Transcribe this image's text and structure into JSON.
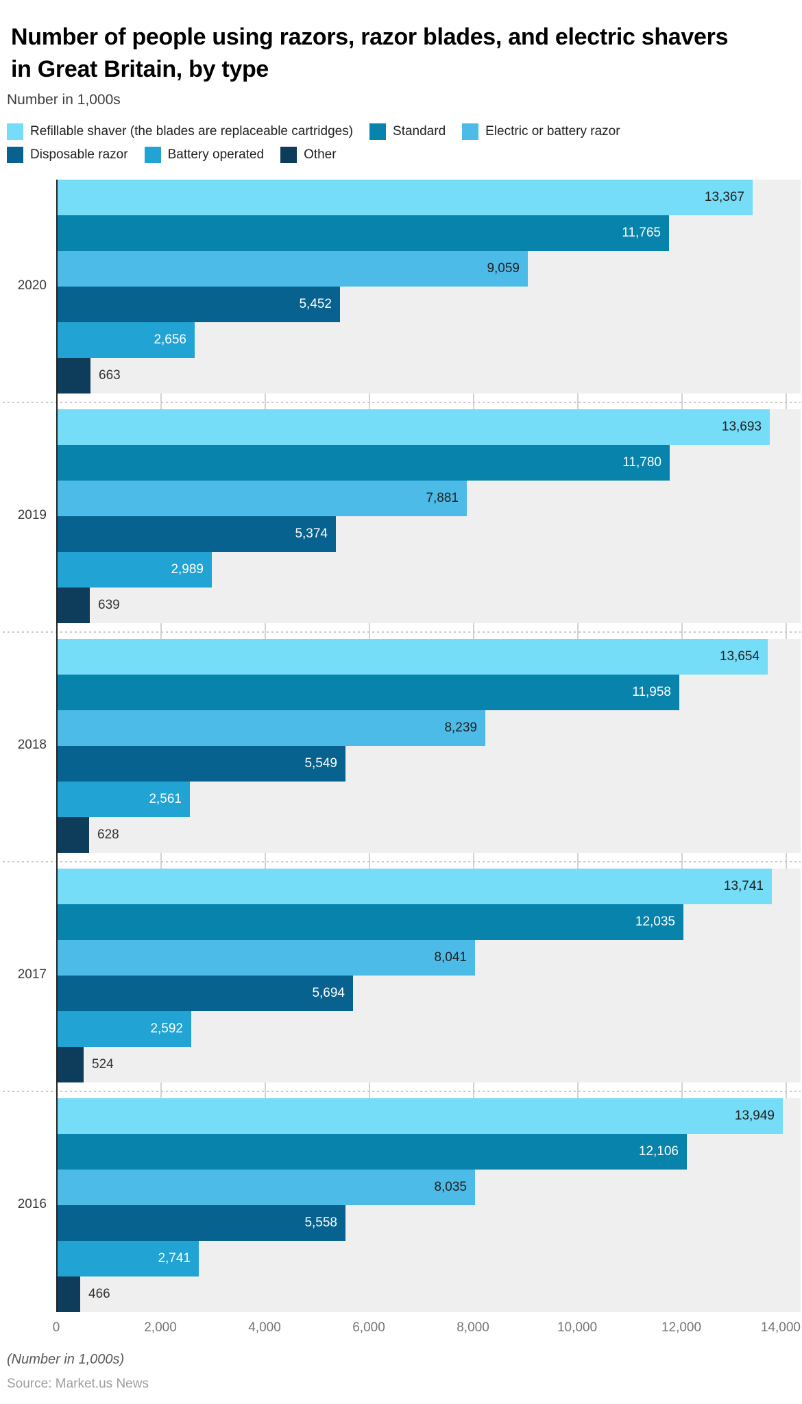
{
  "chart_data": {
    "type": "bar",
    "orientation": "horizontal",
    "title": "Number of people using razors, razor blades, and electric shavers in Great Britain, by type",
    "subtitle": "Number in 1,000s",
    "categories": [
      "2020",
      "2019",
      "2018",
      "2017",
      "2016"
    ],
    "series": [
      {
        "name": "Refillable shaver (the blades are replaceable cartridges)",
        "color": "#76DDF8",
        "values": [
          13367,
          13693,
          13654,
          13741,
          13949
        ],
        "label_color": "#212121",
        "label_position": "inside"
      },
      {
        "name": "Standard",
        "color": "#0883AC",
        "values": [
          11765,
          11780,
          11958,
          12035,
          12106
        ],
        "label_color": "#ffffff",
        "label_position": "inside"
      },
      {
        "name": "Electric or battery razor",
        "color": "#4DBBE8",
        "values": [
          9059,
          7881,
          8239,
          8041,
          8035
        ],
        "label_color": "#212121",
        "label_position": "inside"
      },
      {
        "name": "Disposable razor",
        "color": "#07628F",
        "values": [
          5452,
          5374,
          5549,
          5694,
          5558
        ],
        "label_color": "#ffffff",
        "label_position": "inside"
      },
      {
        "name": "Battery operated",
        "color": "#21A3D3",
        "values": [
          2656,
          2989,
          2561,
          2592,
          2741
        ],
        "label_color": "#ffffff",
        "label_position": "inside"
      },
      {
        "name": "Other",
        "color": "#0E3D5C",
        "values": [
          663,
          639,
          628,
          524,
          466
        ],
        "label_color": "#333333",
        "label_position": "outside"
      }
    ],
    "legend_rows": [
      [
        0,
        1,
        2
      ],
      [
        3,
        4,
        5
      ]
    ],
    "x_ticks": [
      {
        "label": "0",
        "value": 0
      },
      {
        "label": "2,000",
        "value": 2000
      },
      {
        "label": "4,000",
        "value": 4000
      },
      {
        "label": "6,000",
        "value": 6000
      },
      {
        "label": "8,000",
        "value": 8000
      },
      {
        "label": "10,000",
        "value": 10000
      },
      {
        "label": "12,000",
        "value": 12000
      },
      {
        "label": "14,000",
        "value": 14000
      }
    ],
    "style": {
      "plot_background": "#efefef",
      "gridline_color": "#d2d2d2",
      "axis_line_color": "#222222",
      "separator_color": "#c9c9c9"
    },
    "footer_note": "(Number in 1,000s)",
    "source": "Source: Market.us News"
  }
}
